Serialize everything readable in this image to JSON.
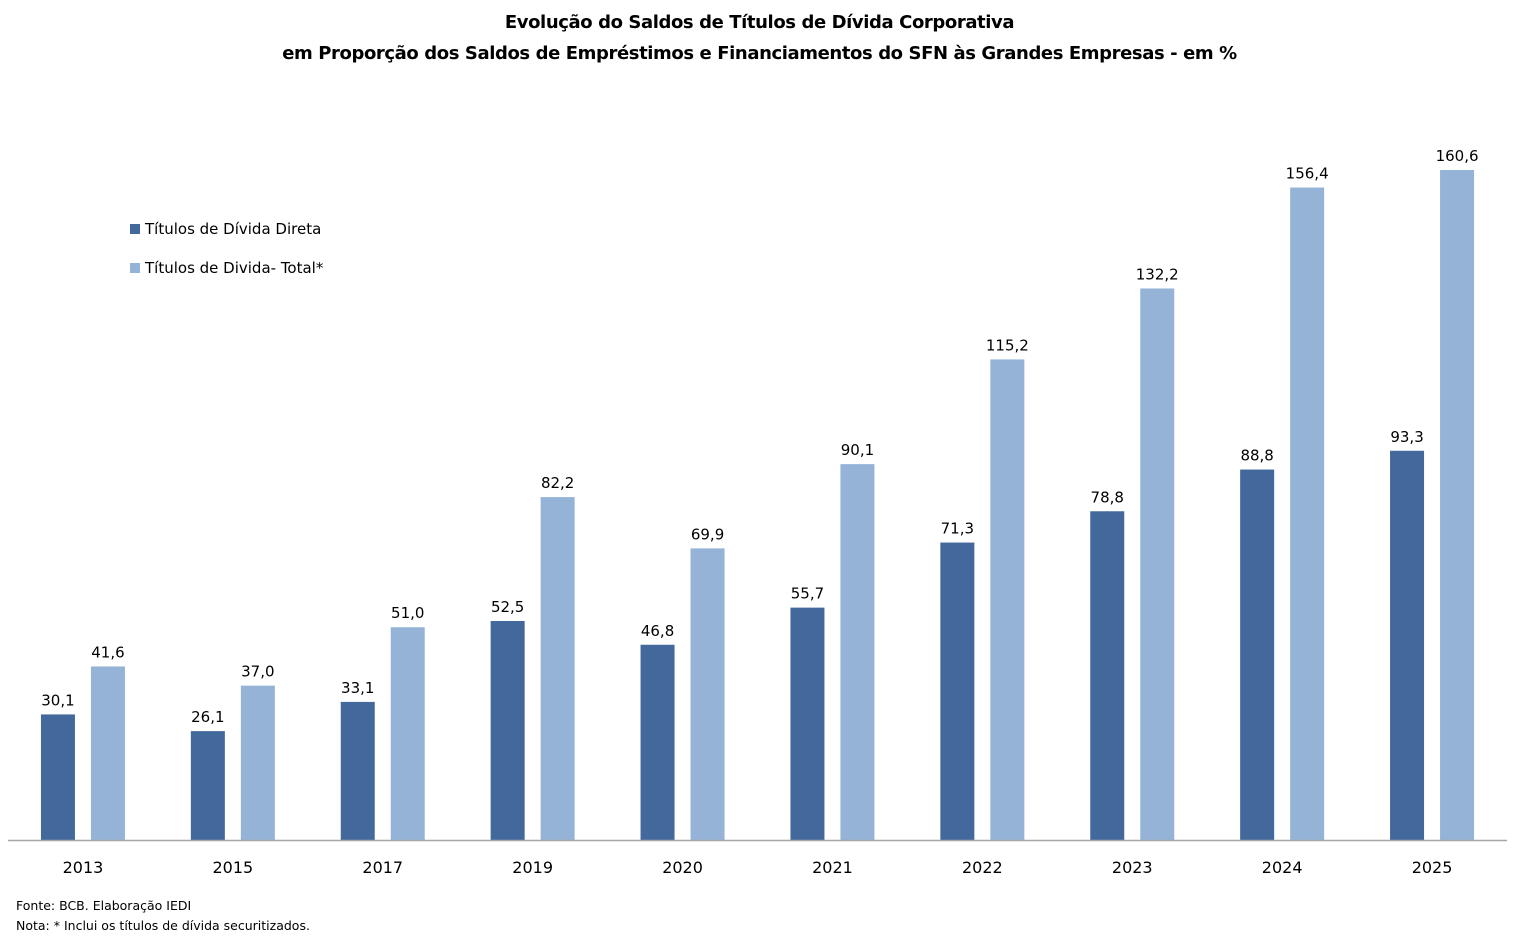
{
  "chart_data": {
    "type": "bar",
    "title": "Evolução do Saldos de Títulos de Dívida Corporativa",
    "subtitle": "em Proporção dos Saldos de Empréstimos e Financiamentos do SFN às Grandes Empresas -  em %",
    "xlabel": "",
    "ylabel": "",
    "ylim": [
      0,
      165
    ],
    "grid": false,
    "legend_position": "top-left",
    "categories": [
      "2013",
      "2015",
      "2017",
      "2019",
      "2020",
      "2021",
      "2022",
      "2023",
      "2024",
      "2025"
    ],
    "series": [
      {
        "name": "Títulos de Dívida Direta",
        "color": "#43699C",
        "values": [
          30.1,
          26.1,
          33.1,
          52.5,
          46.8,
          55.7,
          71.3,
          78.8,
          88.8,
          93.3
        ],
        "labels": [
          "30,1",
          "26,1",
          "33,1",
          "52,5",
          "46,8",
          "55,7",
          "71,3",
          "78,8",
          "88,8",
          "93,3"
        ]
      },
      {
        "name": "Títulos de Divida- Total*",
        "color": "#95B3D7",
        "values": [
          41.6,
          37.0,
          51.0,
          82.2,
          69.9,
          90.1,
          115.2,
          132.2,
          156.4,
          160.6
        ],
        "labels": [
          "41,6",
          "37,0",
          "51,0",
          "82,2",
          "69,9",
          "90,1",
          "115,2",
          "132,2",
          "156,4",
          "160,6"
        ]
      }
    ]
  },
  "footer": {
    "source": "Fonte: BCB. Elaboração IEDI",
    "note": "Nota: * Inclui os títulos de dívida securitizados."
  },
  "colors": {
    "axis": "#A6A6A6"
  }
}
